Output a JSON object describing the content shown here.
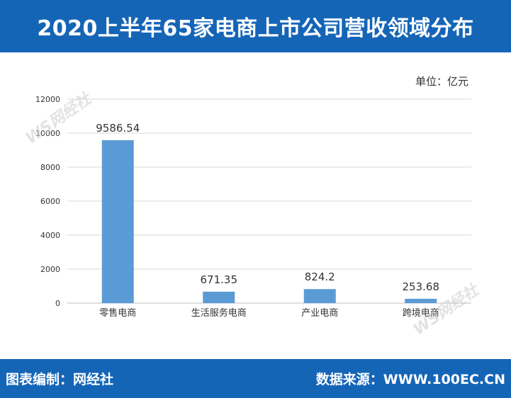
{
  "header": {
    "title": "2020上半年65家电商上市公司营收领域分布"
  },
  "unit_label": "单位：亿元",
  "watermark": {
    "text": "WS网经社"
  },
  "footer": {
    "left_text": "图表编制：网经社",
    "right_text": "数据来源：WWW.100EC.CN"
  },
  "colors": {
    "bar": "#5b9bd5",
    "header": "#1565b7",
    "grid": "#d9d9d9"
  },
  "chart_data": {
    "type": "bar",
    "title": "2020上半年65家电商上市公司营收领域分布",
    "xlabel": "",
    "ylabel": "",
    "unit": "单位：亿元",
    "categories": [
      "零售电商",
      "生活服务电商",
      "产业电商",
      "跨境电商"
    ],
    "values": [
      9586.54,
      671.35,
      824.2,
      253.68
    ],
    "data_labels": [
      "9586.54",
      "671.35",
      "824.2",
      "253.68"
    ],
    "yticks": [
      0,
      2000,
      4000,
      6000,
      8000,
      10000,
      12000
    ],
    "ylim": [
      0,
      12000
    ],
    "grid": true,
    "legend": "none"
  }
}
